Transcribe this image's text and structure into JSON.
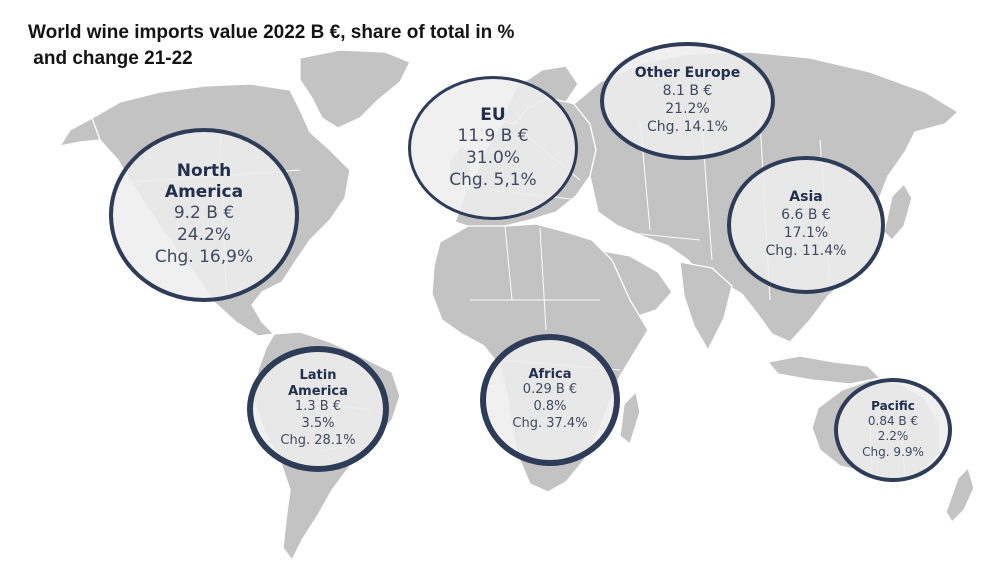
{
  "title": "World wine imports value 2022 B €, share of total in %\n and change 21-22",
  "colors": {
    "land": "#c3c3c3",
    "bubble_border": "#2e3c57",
    "text": "#3f4a60"
  },
  "regions": [
    {
      "id": "north-america",
      "name": "North\nAmerica",
      "value": "9.2 B €",
      "share": "24.2%",
      "change": "Chg. 16,9%"
    },
    {
      "id": "eu",
      "name": "EU",
      "value": "11.9 B €",
      "share": "31.0%",
      "change": "Chg. 5,1%"
    },
    {
      "id": "other-europe",
      "name": "Other Europe",
      "value": "8.1 B €",
      "share": "21.2%",
      "change": "Chg. 14.1%"
    },
    {
      "id": "asia",
      "name": "Asia",
      "value": "6.6 B €",
      "share": "17.1%",
      "change": "Chg. 11.4%"
    },
    {
      "id": "latin-america",
      "name": "Latin\nAmerica",
      "value": "1.3 B €",
      "share": "3.5%",
      "change": "Chg. 28.1%"
    },
    {
      "id": "africa",
      "name": "Africa",
      "value": "0.29 B €",
      "share": "0.8%",
      "change": "Chg. 37.4%"
    },
    {
      "id": "pacific",
      "name": "Pacific",
      "value": "0.84 B €",
      "share": "2.2%",
      "change": "Chg. 9.9%"
    }
  ]
}
